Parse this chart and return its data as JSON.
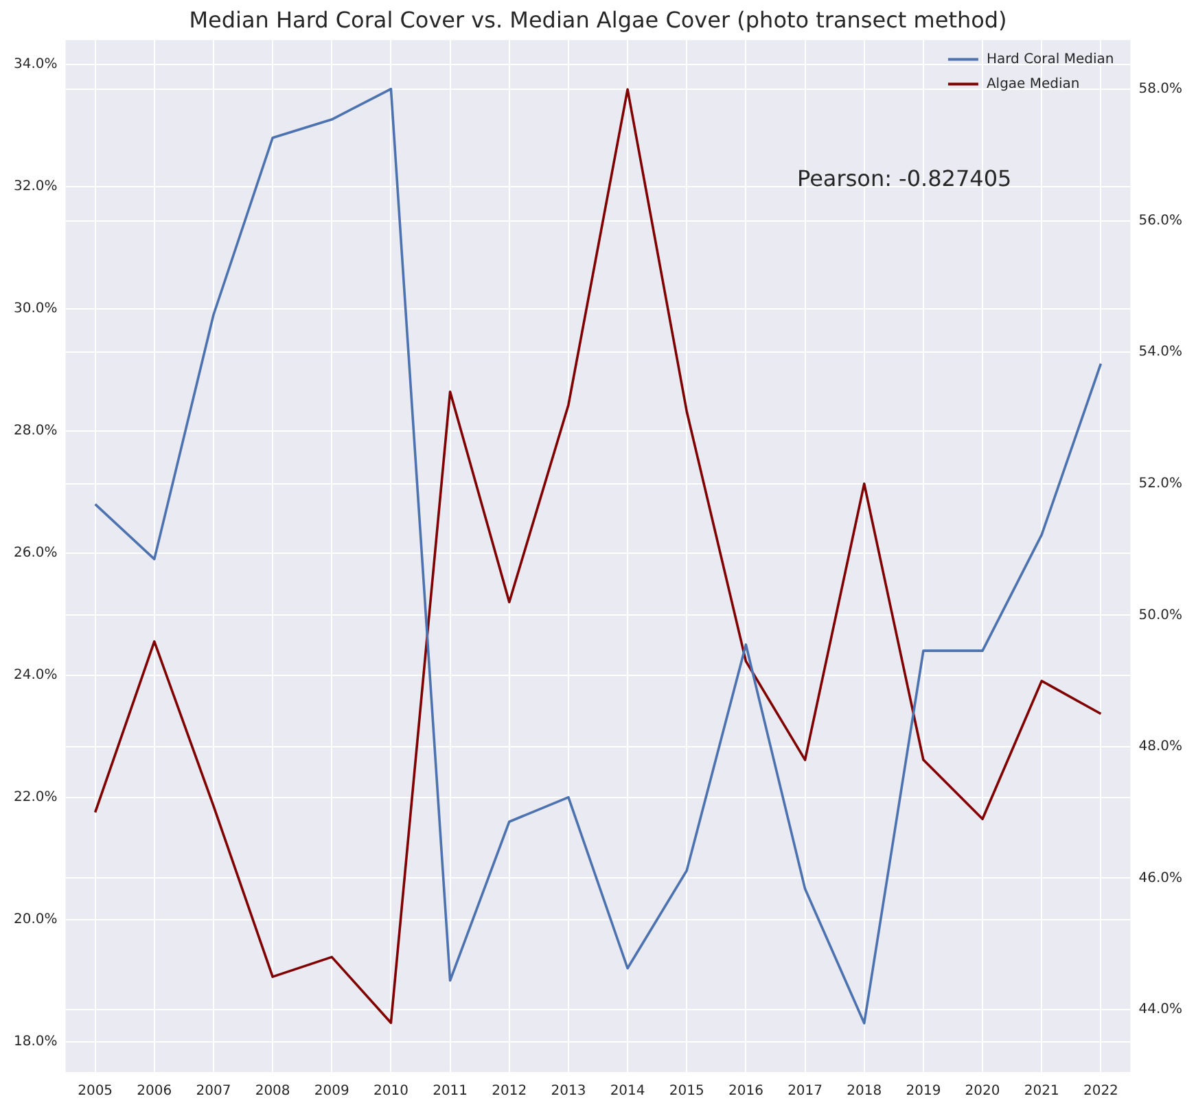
{
  "chart_data": {
    "type": "line",
    "title": "Median Hard Coral Cover vs. Median Algae Cover (photo transect method)",
    "categories": [
      "2005",
      "2006",
      "2007",
      "2008",
      "2009",
      "2010",
      "2011",
      "2012",
      "2013",
      "2014",
      "2015",
      "2016",
      "2017",
      "2018",
      "2019",
      "2020",
      "2021",
      "2022"
    ],
    "series": [
      {
        "name": "Hard Coral Median",
        "color": "#4c72b0",
        "values": [
          26.8,
          25.9,
          29.9,
          32.8,
          33.1,
          33.6,
          19.0,
          21.6,
          22.0,
          19.2,
          20.8,
          24.5,
          20.5,
          18.3,
          24.4,
          24.4,
          26.3,
          29.1
        ]
      },
      {
        "name": "Algae Median",
        "color": "#800000",
        "axis": "y2",
        "values": [
          47.0,
          49.6,
          47.1,
          44.5,
          44.8,
          43.8,
          53.4,
          50.2,
          53.2,
          58.0,
          53.1,
          49.3,
          47.8,
          52.0,
          47.8,
          46.9,
          49.0,
          48.5
        ]
      }
    ],
    "ylim": [
      17.5,
      34.4
    ],
    "yticks": [
      {
        "value": 18,
        "label": "18.0%"
      },
      {
        "value": 20,
        "label": "20.0%"
      },
      {
        "value": 22,
        "label": "22.0%"
      },
      {
        "value": 24,
        "label": "24.0%"
      },
      {
        "value": 26,
        "label": "26.0%"
      },
      {
        "value": 28,
        "label": "28.0%"
      },
      {
        "value": 30,
        "label": "30.0%"
      },
      {
        "value": 32,
        "label": "32.0%"
      },
      {
        "value": 34,
        "label": "34.0%"
      }
    ],
    "y2lim": [
      43.05,
      58.75
    ],
    "y2ticks": [
      {
        "value": 44,
        "label": "44.0%"
      },
      {
        "value": 46,
        "label": "46.0%"
      },
      {
        "value": 48,
        "label": "48.0%"
      },
      {
        "value": 50,
        "label": "50.0%"
      },
      {
        "value": 52,
        "label": "52.0%"
      },
      {
        "value": 54,
        "label": "54.0%"
      },
      {
        "value": 56,
        "label": "56.0%"
      },
      {
        "value": 58,
        "label": "58.0%"
      }
    ],
    "annotations": [
      "Pearson: -0.827405"
    ],
    "grid": true,
    "legend": "top right",
    "marker": "none",
    "line_style": "solid"
  }
}
